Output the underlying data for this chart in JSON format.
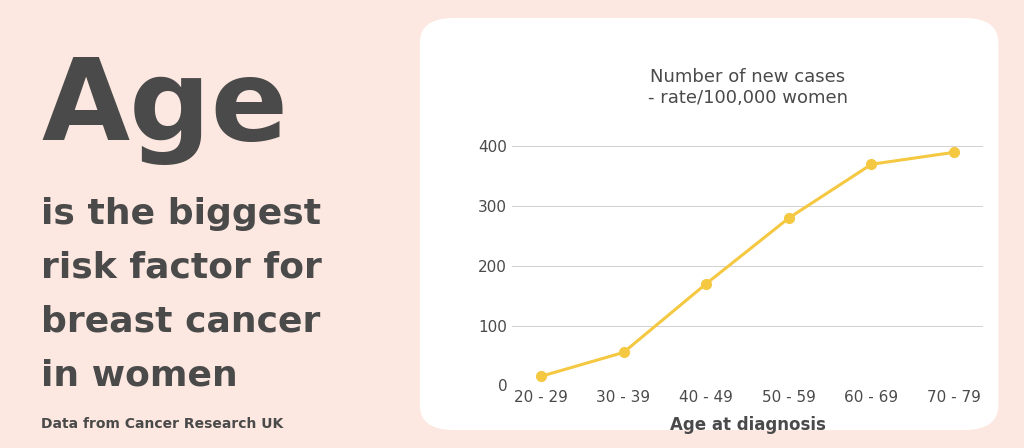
{
  "bg_color": "#fce8e0",
  "chart_bg": "#ffffff",
  "text_color": "#4a4a4a",
  "line_color": "#f5c842",
  "marker_color": "#f5c842",
  "categories": [
    "20 - 29",
    "30 - 39",
    "40 - 49",
    "50 - 59",
    "60 - 69",
    "70 - 79"
  ],
  "values": [
    15,
    55,
    170,
    280,
    370,
    390
  ],
  "title_line1": "Number of new cases",
  "title_line2": "- rate/100,000 women",
  "xlabel": "Age at diagnosis",
  "ylim": [
    0,
    450
  ],
  "yticks": [
    0,
    100,
    200,
    300,
    400
  ],
  "big_text": "Age",
  "sub_text1": "is the biggest",
  "sub_text2": "risk factor for",
  "sub_text3": "breast cancer",
  "sub_text4": "in women",
  "source_text": "Data from Cancer Research UK",
  "big_fontsize": 82,
  "sub_fontsize": 26,
  "source_fontsize": 10,
  "title_fontsize": 13,
  "axis_fontsize": 11
}
